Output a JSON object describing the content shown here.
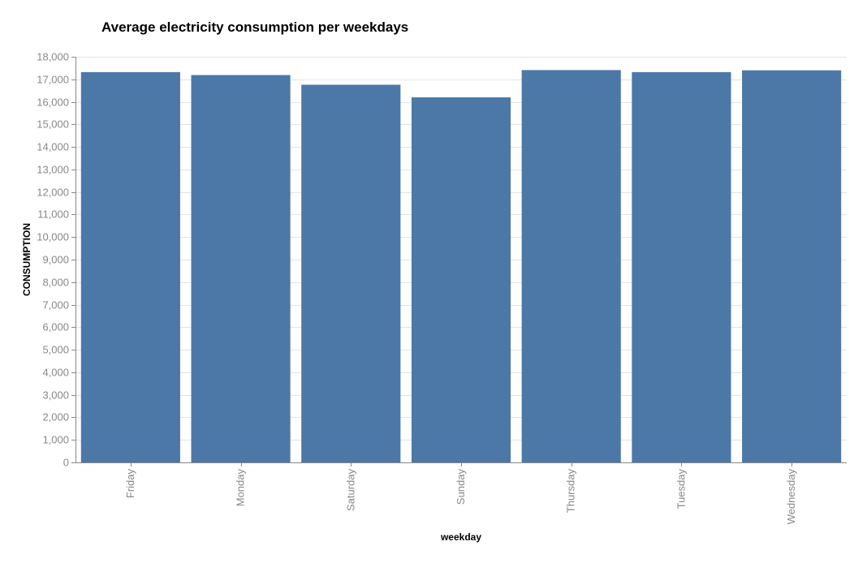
{
  "chart_data": {
    "type": "bar",
    "title": "Average electricity consumption per weekdays",
    "xlabel": "weekday",
    "ylabel": "CONSUMPTION",
    "categories": [
      "Friday",
      "Monday",
      "Saturday",
      "Sunday",
      "Thursday",
      "Tuesday",
      "Wednesday"
    ],
    "values": [
      17320,
      17190,
      16760,
      16200,
      17410,
      17320,
      17400
    ],
    "ylim": [
      0,
      18000
    ],
    "ytick_step": 1000,
    "grid": true,
    "bar_color": "#4c78a8"
  }
}
